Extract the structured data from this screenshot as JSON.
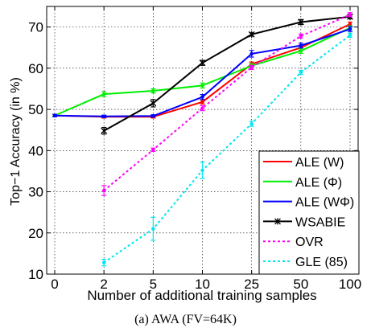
{
  "chart_data": {
    "type": "line",
    "caption": "(a)  AWA (FV=64K)",
    "xlabel": "Number of additional training samples",
    "ylabel": "Top−1 Accuracy (in %)",
    "categories": [
      "0",
      "2",
      "5",
      "10",
      "25",
      "50",
      "100"
    ],
    "ylim": [
      10,
      75
    ],
    "yticks": [
      10,
      20,
      30,
      40,
      50,
      60,
      70
    ],
    "grid": true,
    "legend_position": "bottom-right",
    "series": [
      {
        "name": "ALE (W)",
        "color": "#ff0000",
        "dash": "solid",
        "marker": "dot",
        "values": [
          48.5,
          48.2,
          48.2,
          51.8,
          61.0,
          65.0,
          70.7
        ],
        "errors": [
          0.3,
          0.3,
          0.3,
          0.5,
          0.5,
          0.6,
          0.5
        ]
      },
      {
        "name": "ALE (Φ)",
        "color": "#00ee00",
        "dash": "solid",
        "marker": "dot",
        "values": [
          48.5,
          53.7,
          54.5,
          55.8,
          60.6,
          64.2,
          69.8
        ],
        "errors": [
          0.3,
          0.6,
          0.5,
          0.6,
          0.5,
          0.6,
          0.5
        ]
      },
      {
        "name": "ALE (WΦ)",
        "color": "#0000ff",
        "dash": "solid",
        "marker": "dot",
        "values": [
          48.5,
          48.3,
          48.4,
          53.0,
          63.5,
          65.5,
          69.5
        ],
        "errors": [
          0.3,
          0.3,
          0.3,
          0.6,
          0.8,
          0.6,
          0.6
        ]
      },
      {
        "name": "WSABIE",
        "color": "#000000",
        "dash": "solid",
        "marker": "star",
        "values": [
          null,
          44.8,
          51.5,
          61.3,
          68.2,
          71.2,
          72.5
        ],
        "errors": [
          0,
          0.8,
          0.9,
          0.6,
          0.4,
          0.6,
          0.5
        ]
      },
      {
        "name": "OVR",
        "color": "#ff00ff",
        "dash": "dashed",
        "marker": "dot",
        "values": [
          null,
          30.3,
          40.2,
          50.3,
          60.2,
          67.8,
          73.0
        ],
        "errors": [
          0,
          1.2,
          0.4,
          0.6,
          0.5,
          0.5,
          0.5
        ]
      },
      {
        "name": "GLE (85)",
        "color": "#00e5ee",
        "dash": "dashed",
        "marker": "dot",
        "values": [
          null,
          12.8,
          21.0,
          35.2,
          46.5,
          59.0,
          68.0
        ],
        "errors": [
          0,
          0.8,
          2.8,
          2.0,
          0.6,
          0.5,
          0.5
        ]
      }
    ]
  }
}
